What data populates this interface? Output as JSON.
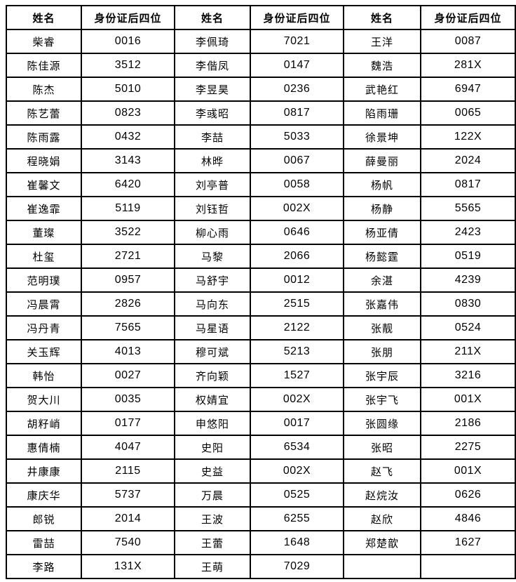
{
  "table": {
    "header": {
      "name_label": "姓名",
      "id_label": "身份证后四位"
    },
    "groups": [
      {
        "rows": [
          {
            "name": "柴睿",
            "id": "0016"
          },
          {
            "name": "陈佳源",
            "id": "3512"
          },
          {
            "name": "陈杰",
            "id": "5010"
          },
          {
            "name": "陈艺蕾",
            "id": "0823"
          },
          {
            "name": "陈雨露",
            "id": "0432"
          },
          {
            "name": "程晓娟",
            "id": "3143"
          },
          {
            "name": "崔馨文",
            "id": "6420"
          },
          {
            "name": "崔逸霏",
            "id": "5119"
          },
          {
            "name": "董璨",
            "id": "3522"
          },
          {
            "name": "杜玺",
            "id": "2721"
          },
          {
            "name": "范明璞",
            "id": "0957"
          },
          {
            "name": "冯晨霄",
            "id": "2826"
          },
          {
            "name": "冯丹青",
            "id": "7565"
          },
          {
            "name": "关玉辉",
            "id": "4013"
          },
          {
            "name": "韩怡",
            "id": "0027"
          },
          {
            "name": "贺大川",
            "id": "0035"
          },
          {
            "name": "胡籽峭",
            "id": "0177"
          },
          {
            "name": "惠倩楠",
            "id": "4047"
          },
          {
            "name": "井康康",
            "id": "2115"
          },
          {
            "name": "康庆华",
            "id": "5737"
          },
          {
            "name": "郎锐",
            "id": "2014"
          },
          {
            "name": "雷喆",
            "id": "7540"
          },
          {
            "name": "李路",
            "id": "131X"
          }
        ]
      },
      {
        "rows": [
          {
            "name": "李佩琦",
            "id": "7021"
          },
          {
            "name": "李偕凤",
            "id": "0147"
          },
          {
            "name": "李昱昊",
            "id": "0236"
          },
          {
            "name": "李彧昭",
            "id": "0817"
          },
          {
            "name": "李喆",
            "id": "5033"
          },
          {
            "name": "林晔",
            "id": "0067"
          },
          {
            "name": "刘亭普",
            "id": "0058"
          },
          {
            "name": "刘钰哲",
            "id": "002X"
          },
          {
            "name": "柳心雨",
            "id": "0646"
          },
          {
            "name": "马黎",
            "id": "2066"
          },
          {
            "name": "马舒宇",
            "id": "0012"
          },
          {
            "name": "马向东",
            "id": "2515"
          },
          {
            "name": "马星语",
            "id": "2122"
          },
          {
            "name": "穆可斌",
            "id": "5213"
          },
          {
            "name": "齐向颖",
            "id": "1527"
          },
          {
            "name": "权婧宜",
            "id": "002X"
          },
          {
            "name": "申悠阳",
            "id": "0017"
          },
          {
            "name": "史阳",
            "id": "6534"
          },
          {
            "name": "史益",
            "id": "002X"
          },
          {
            "name": "万晨",
            "id": "0525"
          },
          {
            "name": "王波",
            "id": "6255"
          },
          {
            "name": "王蕾",
            "id": "1648"
          },
          {
            "name": "王萌",
            "id": "7029"
          }
        ]
      },
      {
        "rows": [
          {
            "name": "王洋",
            "id": "0087"
          },
          {
            "name": "魏浩",
            "id": "281X"
          },
          {
            "name": "武艳红",
            "id": "6947"
          },
          {
            "name": "陷雨珊",
            "id": "0065"
          },
          {
            "name": "徐景坤",
            "id": "122X"
          },
          {
            "name": "薛曼丽",
            "id": "2024"
          },
          {
            "name": "杨帆",
            "id": "0817"
          },
          {
            "name": "杨静",
            "id": "5565"
          },
          {
            "name": "杨亚倩",
            "id": "2423"
          },
          {
            "name": "杨懿霆",
            "id": "0519"
          },
          {
            "name": "余湛",
            "id": "4239"
          },
          {
            "name": "张嘉伟",
            "id": "0830"
          },
          {
            "name": "张靓",
            "id": "0524"
          },
          {
            "name": "张朋",
            "id": "211X"
          },
          {
            "name": "张宇辰",
            "id": "3216"
          },
          {
            "name": "张宇飞",
            "id": "001X"
          },
          {
            "name": "张圆缘",
            "id": "2186"
          },
          {
            "name": "张昭",
            "id": "2275"
          },
          {
            "name": "赵飞",
            "id": "001X"
          },
          {
            "name": "赵烷汝",
            "id": "0626"
          },
          {
            "name": "赵欣",
            "id": "4846"
          },
          {
            "name": "郑楚歆",
            "id": "1627"
          }
        ]
      }
    ]
  }
}
